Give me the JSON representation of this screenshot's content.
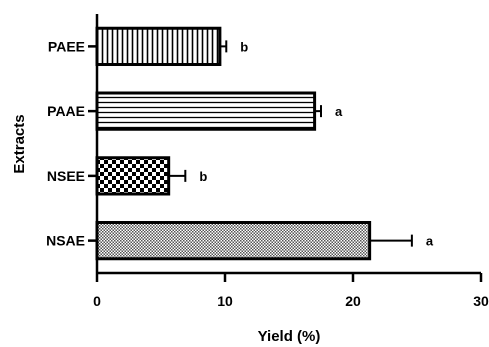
{
  "chart_data": {
    "type": "bar",
    "orientation": "horizontal",
    "categories": [
      "PAEE",
      "PAAE",
      "NSEE",
      "NSAE"
    ],
    "values": [
      9.6,
      17.0,
      5.6,
      21.3
    ],
    "errors": [
      0.5,
      0.5,
      1.3,
      3.3
    ],
    "significance": [
      "b",
      "a",
      "b",
      "a"
    ],
    "patterns": [
      "vertical-lines",
      "horizontal-lines",
      "checkerboard",
      "fine-crosshatch"
    ],
    "xlabel": "Yield (%)",
    "ylabel": "Extracts",
    "xlim": [
      0,
      30
    ],
    "xticks": [
      0,
      10,
      20,
      30
    ],
    "grid": false,
    "colors": {
      "ink": "#000000",
      "fill": "#ffffff"
    }
  }
}
